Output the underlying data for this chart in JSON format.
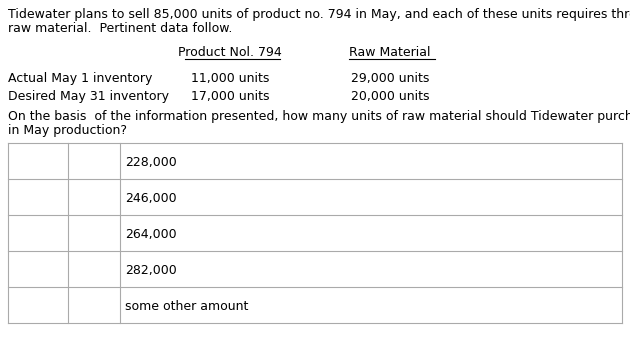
{
  "background_color": "#ffffff",
  "text_color": "#000000",
  "intro_line1": "Tidewater plans to sell 85,000 units of product no. 794 in May, and each of these units requires three units of",
  "intro_line2": "raw material.  Pertinent data follow.",
  "col1_header": "Product Nol. 794",
  "col2_header": "Raw Material",
  "row1_label": "Actual May 1 inventory",
  "row1_col1": "11,000 units",
  "row1_col2": "29,000 units",
  "row2_label": "Desired May 31 inventory",
  "row2_col1": "17,000 units",
  "row2_col2": "20,000 units",
  "question_line1": "On the basis  of the information presented, how many units of raw material should Tidewater purchase for use",
  "question_line2": "in May production?",
  "choices": [
    "228,000",
    "246,000",
    "264,000",
    "282,000",
    "some other amount"
  ],
  "font_size": 9.0,
  "line_color": "#aaaaaa"
}
